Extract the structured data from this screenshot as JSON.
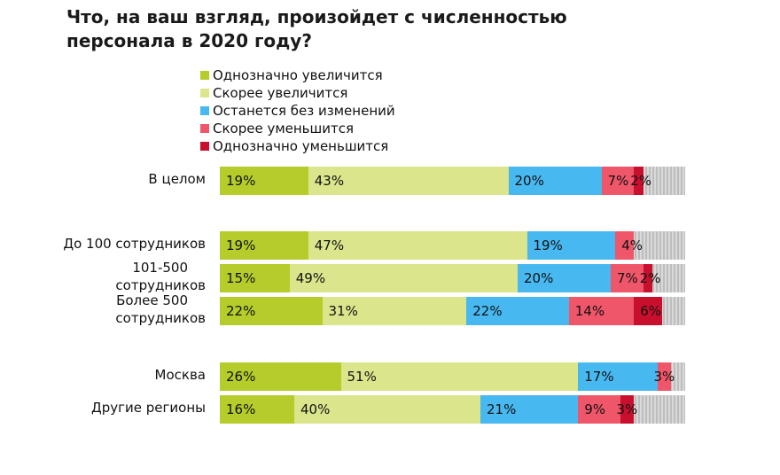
{
  "chart_data": {
    "type": "bar",
    "orientation": "horizontal",
    "stacked": true,
    "title": "Что, на ваш взгляд, произойдет с численностью персонала в 2020 году?",
    "xlim": [
      0,
      100
    ],
    "categories": [
      "В целом",
      "До 100 сотрудников",
      "101-500 сотрудников",
      "Более 500 сотрудников",
      "Москва",
      "Другие регионы"
    ],
    "series": [
      {
        "name": "Однозначно увеличится",
        "color": "#b5cc2a",
        "values": [
          19,
          19,
          15,
          22,
          26,
          16
        ],
        "labels": [
          "19%",
          "19%",
          "15%",
          "22%",
          "26%",
          "16%"
        ]
      },
      {
        "name": "Скорее увеличится",
        "color": "#dbe58c",
        "values": [
          43,
          47,
          49,
          31,
          51,
          40
        ],
        "labels": [
          "43%",
          "47%",
          "49%",
          "31%",
          "51%",
          "40%"
        ]
      },
      {
        "name": "Останется без изменений",
        "color": "#48b8f0",
        "values": [
          20,
          19,
          20,
          22,
          17,
          21
        ],
        "labels": [
          "20%",
          "19%",
          "20%",
          "22%",
          "17%",
          "21%"
        ]
      },
      {
        "name": "Скорее уменьшится",
        "color": "#f0566a",
        "values": [
          7,
          4,
          7,
          14,
          3,
          9
        ],
        "labels": [
          "7%",
          "4%",
          "7%",
          "14%",
          "3%",
          "9%"
        ]
      },
      {
        "name": "Однозначно уменьшится",
        "color": "#c8102e",
        "values": [
          2,
          0,
          2,
          6,
          0,
          3
        ],
        "labels": [
          "2%",
          "",
          "2%",
          "6%",
          "",
          "3%"
        ]
      }
    ],
    "legend_position": "top"
  }
}
